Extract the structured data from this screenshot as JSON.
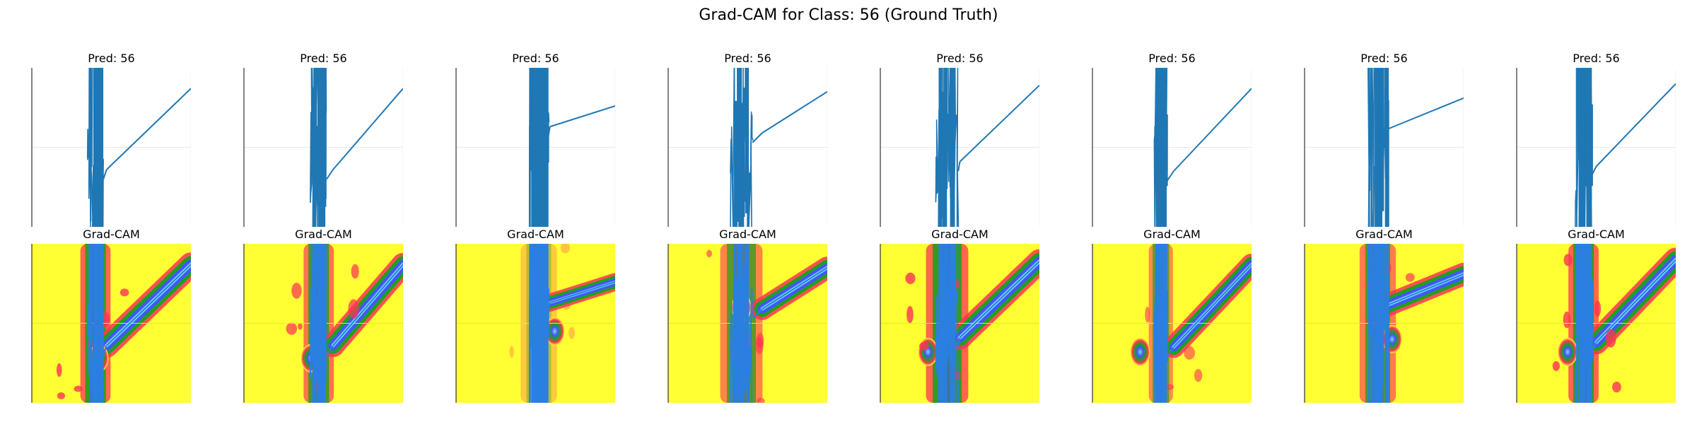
{
  "figure": {
    "title": "Grad-CAM for Class: 56 (Ground Truth)"
  },
  "colors": {
    "signal": "#1f77b4",
    "signal_overlay": "#2a7fe0",
    "heat_background": "#ffff33",
    "heat_red": "#ff3355",
    "heat_green": "#1fa01f",
    "heat_blue": "#4455ff",
    "heat_cyan": "#77ddee"
  },
  "chart_data": [
    {
      "type": "line",
      "row": "signal",
      "title": "Pred: 56",
      "burst_center": 0.4,
      "burst_half_width": 0.05,
      "ramp_start": [
        0.47,
        0.64
      ],
      "ramp_end": [
        1.0,
        0.13
      ]
    },
    {
      "type": "line",
      "row": "signal",
      "title": "Pred: 56",
      "burst_center": 0.47,
      "burst_half_width": 0.05,
      "ramp_start": [
        0.56,
        0.64
      ],
      "ramp_end": [
        1.0,
        0.13
      ]
    },
    {
      "type": "line",
      "row": "signal",
      "title": "Pred: 56",
      "burst_center": 0.52,
      "burst_half_width": 0.06,
      "ramp_start": [
        0.59,
        0.37
      ],
      "ramp_end": [
        1.0,
        0.24
      ]
    },
    {
      "type": "line",
      "row": "signal",
      "title": "Pred: 56",
      "burst_center": 0.46,
      "burst_half_width": 0.07,
      "ramp_start": [
        0.59,
        0.41
      ],
      "ramp_end": [
        1.0,
        0.15
      ]
    },
    {
      "type": "line",
      "row": "signal",
      "title": "Pred: 56",
      "burst_center": 0.42,
      "burst_half_width": 0.07,
      "ramp_start": [
        0.5,
        0.59
      ],
      "ramp_end": [
        1.0,
        0.11
      ]
    },
    {
      "type": "line",
      "row": "signal",
      "title": "Pred: 56",
      "burst_center": 0.43,
      "burst_half_width": 0.04,
      "ramp_start": [
        0.51,
        0.65
      ],
      "ramp_end": [
        1.0,
        0.13
      ]
    },
    {
      "type": "line",
      "row": "signal",
      "title": "Pred: 56",
      "burst_center": 0.46,
      "burst_half_width": 0.06,
      "ramp_start": [
        0.51,
        0.39
      ],
      "ramp_end": [
        1.0,
        0.19
      ]
    },
    {
      "type": "line",
      "row": "signal",
      "title": "Pred: 56",
      "burst_center": 0.42,
      "burst_half_width": 0.05,
      "ramp_start": [
        0.5,
        0.62
      ],
      "ramp_end": [
        1.0,
        0.1
      ]
    },
    {
      "type": "heatmap",
      "row": "gradcam",
      "title": "Grad-CAM",
      "burst_center": 0.4,
      "burst_half_width": 0.05,
      "ramp_start": [
        0.47,
        0.64
      ],
      "ramp_end": [
        1.0,
        0.13
      ],
      "focus": [
        0.42,
        0.72
      ],
      "overlay_strength": 1.0
    },
    {
      "type": "heatmap",
      "row": "gradcam",
      "title": "Grad-CAM",
      "burst_center": 0.47,
      "burst_half_width": 0.05,
      "ramp_start": [
        0.56,
        0.64
      ],
      "ramp_end": [
        1.0,
        0.13
      ],
      "focus": [
        0.42,
        0.72
      ],
      "overlay_strength": 0.9
    },
    {
      "type": "heatmap",
      "row": "gradcam",
      "title": "Grad-CAM",
      "burst_center": 0.52,
      "burst_half_width": 0.06,
      "ramp_start": [
        0.59,
        0.37
      ],
      "ramp_end": [
        1.0,
        0.24
      ],
      "focus": [
        0.62,
        0.55
      ],
      "overlay_strength": 0.35
    },
    {
      "type": "heatmap",
      "row": "gradcam",
      "title": "Grad-CAM",
      "burst_center": 0.46,
      "burst_half_width": 0.07,
      "ramp_start": [
        0.59,
        0.41
      ],
      "ramp_end": [
        1.0,
        0.15
      ],
      "focus": [
        0.46,
        0.4
      ],
      "overlay_strength": 0.8
    },
    {
      "type": "heatmap",
      "row": "gradcam",
      "title": "Grad-CAM",
      "burst_center": 0.42,
      "burst_half_width": 0.07,
      "ramp_start": [
        0.5,
        0.59
      ],
      "ramp_end": [
        1.0,
        0.11
      ],
      "focus": [
        0.3,
        0.68
      ],
      "overlay_strength": 1.0
    },
    {
      "type": "heatmap",
      "row": "gradcam",
      "title": "Grad-CAM",
      "burst_center": 0.43,
      "burst_half_width": 0.04,
      "ramp_start": [
        0.51,
        0.65
      ],
      "ramp_end": [
        1.0,
        0.13
      ],
      "focus": [
        0.3,
        0.68
      ],
      "overlay_strength": 0.75
    },
    {
      "type": "heatmap",
      "row": "gradcam",
      "title": "Grad-CAM",
      "burst_center": 0.46,
      "burst_half_width": 0.06,
      "ramp_start": [
        0.51,
        0.39
      ],
      "ramp_end": [
        1.0,
        0.19
      ],
      "focus": [
        0.55,
        0.6
      ],
      "overlay_strength": 0.85
    },
    {
      "type": "heatmap",
      "row": "gradcam",
      "title": "Grad-CAM",
      "burst_center": 0.42,
      "burst_half_width": 0.05,
      "ramp_start": [
        0.5,
        0.62
      ],
      "ramp_end": [
        1.0,
        0.1
      ],
      "focus": [
        0.32,
        0.68
      ],
      "overlay_strength": 1.0
    }
  ]
}
